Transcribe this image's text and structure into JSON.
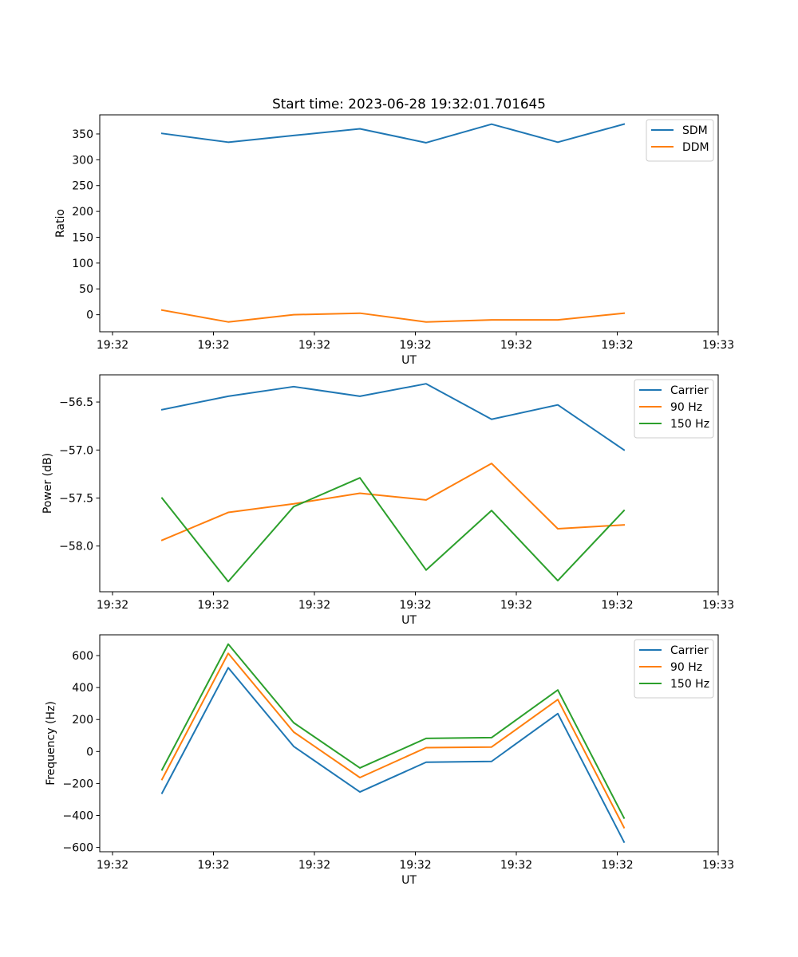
{
  "figure": {
    "title": "Start time: 2023-06-28 19:32:01.701645"
  },
  "chart_data": [
    {
      "type": "line",
      "xlabel": "UT",
      "ylabel": "Ratio",
      "x_tick_labels": [
        "19:32",
        "19:32",
        "19:32",
        "19:32",
        "19:32",
        "19:32",
        "19:33"
      ],
      "y_ticks": [
        0,
        50,
        100,
        150,
        200,
        250,
        300,
        350
      ],
      "y_tick_labels": [
        "0",
        "50",
        "100",
        "150",
        "200",
        "250",
        "300",
        "350"
      ],
      "ylim": [
        -33,
        387
      ],
      "legend_position": "upper right",
      "series": [
        {
          "name": "SDM",
          "color": "#1f77b4",
          "values": [
            351,
            334,
            347,
            360,
            333,
            369,
            334,
            369
          ]
        },
        {
          "name": "DDM",
          "color": "#ff7f0e",
          "values": [
            9,
            -14,
            0,
            3,
            -14,
            -10,
            -10,
            3
          ]
        }
      ]
    },
    {
      "type": "line",
      "xlabel": "UT",
      "ylabel": "Power (dB)",
      "x_tick_labels": [
        "19:32",
        "19:32",
        "19:32",
        "19:32",
        "19:32",
        "19:32",
        "19:33"
      ],
      "y_ticks": [
        -58.0,
        -57.5,
        -57.0,
        -56.5
      ],
      "y_tick_labels": [
        "−58.0",
        "−57.5",
        "−57.0",
        "−56.5"
      ],
      "ylim": [
        -58.476,
        -56.217
      ],
      "legend_position": "upper right",
      "series": [
        {
          "name": "Carrier",
          "color": "#1f77b4",
          "values": [
            -56.58,
            -56.44,
            -56.34,
            -56.44,
            -56.31,
            -56.68,
            -56.53,
            -57.0
          ]
        },
        {
          "name": "90 Hz",
          "color": "#ff7f0e",
          "values": [
            -57.94,
            -57.65,
            -57.56,
            -57.45,
            -57.52,
            -57.14,
            -57.82,
            -57.78
          ]
        },
        {
          "name": "150 Hz",
          "color": "#2ca02c",
          "values": [
            -57.5,
            -58.37,
            -57.59,
            -57.29,
            -58.25,
            -57.63,
            -58.36,
            -57.63
          ]
        }
      ]
    },
    {
      "type": "line",
      "xlabel": "UT",
      "ylabel": "Frequency (Hz)",
      "x_tick_labels": [
        "19:32",
        "19:32",
        "19:32",
        "19:32",
        "19:32",
        "19:32",
        "19:33"
      ],
      "y_ticks": [
        -600,
        -400,
        -200,
        0,
        200,
        400,
        600
      ],
      "y_tick_labels": [
        "−600",
        "−400",
        "−200",
        "0",
        "200",
        "400",
        "600"
      ],
      "ylim": [
        -627,
        730
      ],
      "legend_position": "upper right",
      "series": [
        {
          "name": "Carrier",
          "color": "#1f77b4",
          "values": [
            -261,
            524,
            32,
            -253,
            -67,
            -62,
            237,
            -566
          ]
        },
        {
          "name": "90 Hz",
          "color": "#ff7f0e",
          "values": [
            -175,
            614,
            122,
            -163,
            24,
            28,
            325,
            -476
          ]
        },
        {
          "name": "150 Hz",
          "color": "#2ca02c",
          "values": [
            -115,
            672,
            180,
            -103,
            82,
            87,
            385,
            -416
          ]
        }
      ]
    }
  ]
}
